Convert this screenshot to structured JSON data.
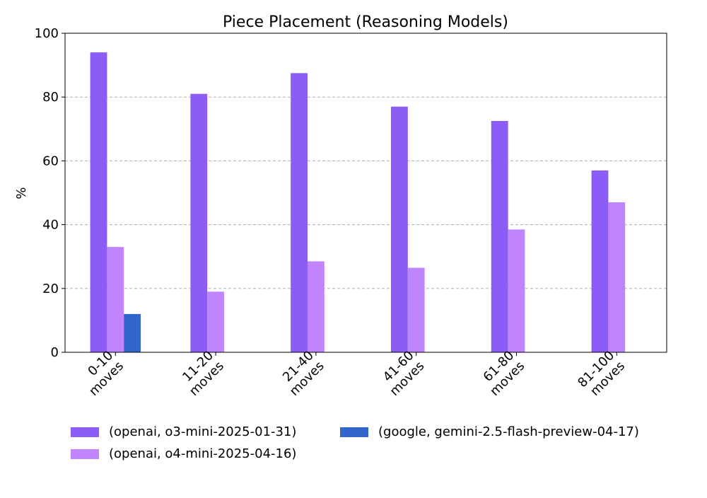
{
  "chart_data": {
    "type": "bar",
    "title": "Piece Placement (Reasoning Models)",
    "xlabel": "",
    "ylabel": "%",
    "ylim": [
      0,
      100
    ],
    "yticks": [
      0,
      20,
      40,
      60,
      80,
      100
    ],
    "grid": "y-dashed",
    "legend_position": "bottom",
    "categories": [
      [
        "0-10",
        "moves"
      ],
      [
        "11-20",
        "moves"
      ],
      [
        "21-40",
        "moves"
      ],
      [
        "41-60",
        "moves"
      ],
      [
        "61-80",
        "moves"
      ],
      [
        "81-100",
        "moves"
      ]
    ],
    "series": [
      {
        "name": "(openai, o3-mini-2025-01-31)",
        "color": "#8b5cf6",
        "values": [
          94,
          81,
          87.5,
          77,
          72.5,
          57
        ]
      },
      {
        "name": "(openai, o4-mini-2025-04-16)",
        "color": "#c084fc",
        "values": [
          33,
          19,
          28.5,
          26.5,
          38.5,
          47
        ]
      },
      {
        "name": "(google, gemini-2.5-flash-preview-04-17)",
        "color": "#3366cc",
        "values": [
          12,
          0,
          0,
          0,
          0,
          0
        ]
      }
    ]
  }
}
